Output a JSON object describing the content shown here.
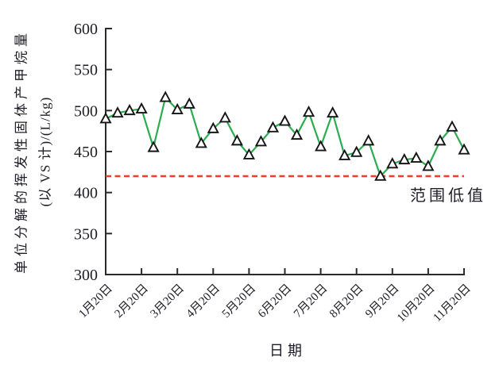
{
  "chart_data": {
    "type": "line",
    "title": "",
    "xlabel": "日期",
    "ylabel_line1": "单位分解的挥发性固体产甲烷量",
    "ylabel_line2": "(以 VS 计)/(L/kg)",
    "ylim": [
      300,
      600
    ],
    "yticks": [
      300,
      350,
      400,
      450,
      500,
      550,
      600
    ],
    "xtick_labels": [
      "1月20日",
      "2月20日",
      "3月20日",
      "4月20日",
      "5月20日",
      "6月20日",
      "7月20日",
      "8月20日",
      "9月20日",
      "10月20日",
      "11月20日"
    ],
    "xtick_indices": [
      0,
      3,
      6,
      9,
      12,
      15,
      18,
      21,
      24,
      27,
      30
    ],
    "values": [
      490,
      497,
      500,
      502,
      455,
      516,
      501,
      508,
      460,
      478,
      491,
      463,
      446,
      462,
      479,
      487,
      470,
      498,
      456,
      497,
      445,
      449,
      463,
      420,
      435,
      440,
      442,
      432,
      463,
      480,
      452
    ],
    "threshold": {
      "value": 420,
      "label": "范围低值",
      "style": "dashed",
      "color": "#f43b2c"
    },
    "marker": "triangle-up",
    "grid": false,
    "legend_position": "none",
    "colors": {
      "line": "#29ad4f",
      "marker_fill": "#ffffff",
      "marker_stroke": "#151515",
      "axis": "#2a2a2a",
      "text": "#1d1d26"
    }
  }
}
